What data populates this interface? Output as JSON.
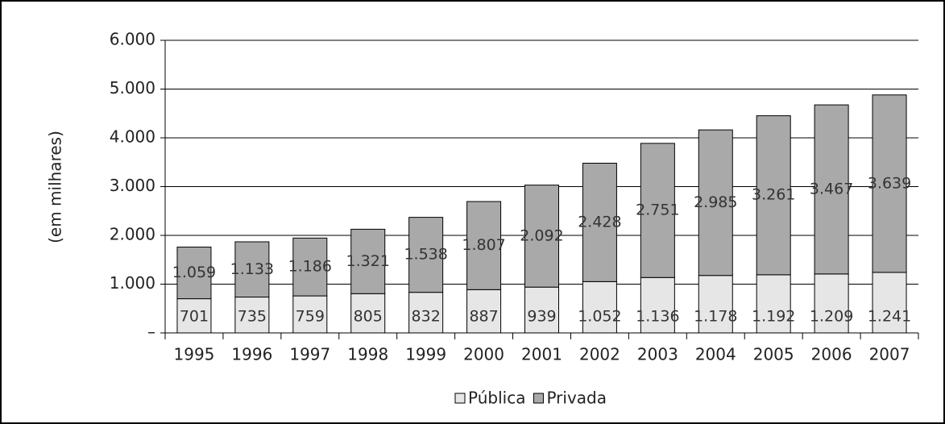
{
  "chart_data": {
    "type": "stacked_bar",
    "y_label": "(em milhares)",
    "categories": [
      "1995",
      "1996",
      "1997",
      "1998",
      "1999",
      "2000",
      "2001",
      "2002",
      "2003",
      "2004",
      "2005",
      "2006",
      "2007"
    ],
    "series": [
      {
        "name": "Pública",
        "color": "#e6e6e6",
        "values": [
          701,
          735,
          759,
          805,
          832,
          887,
          939,
          1052,
          1136,
          1178,
          1192,
          1209,
          1241
        ],
        "value_labels": [
          "701",
          "735",
          "759",
          "805",
          "832",
          "887",
          "939",
          "1.052",
          "1.136",
          "1.178",
          "1.192",
          "1.209",
          "1.241"
        ]
      },
      {
        "name": "Privada",
        "color": "#a9a9a9",
        "values": [
          1059,
          1133,
          1186,
          1321,
          1538,
          1807,
          2092,
          2428,
          2751,
          2985,
          3261,
          3467,
          3639
        ],
        "value_labels": [
          "1.059",
          "1.133",
          "1.186",
          "1.321",
          "1.538",
          "1.807",
          "2.092",
          "2.428",
          "2.751",
          "2.985",
          "3.261",
          "3.467",
          "3.639"
        ]
      }
    ],
    "ylim": [
      0,
      6000
    ],
    "yticks": [
      {
        "value": 0,
        "label": "–"
      },
      {
        "value": 1000,
        "label": "1.000"
      },
      {
        "value": 2000,
        "label": "2.000"
      },
      {
        "value": 3000,
        "label": "3.000"
      },
      {
        "value": 4000,
        "label": "4.000"
      },
      {
        "value": 5000,
        "label": "5.000"
      },
      {
        "value": 6000,
        "label": "6.000"
      }
    ],
    "grid": true,
    "legend": "bottom"
  }
}
